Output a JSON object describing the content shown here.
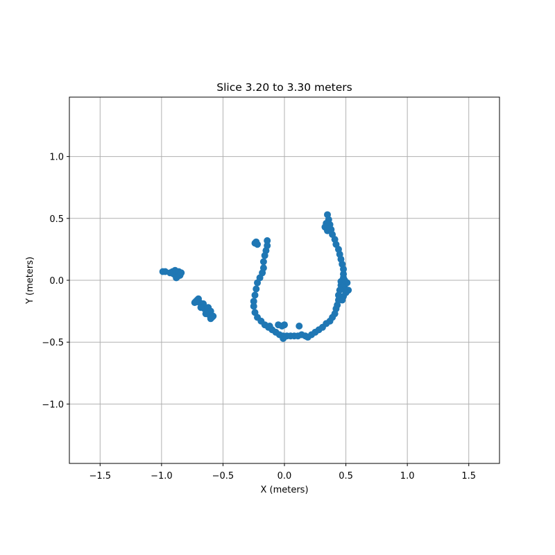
{
  "chart_data": {
    "type": "scatter",
    "title": "Slice 3.20 to 3.30 meters",
    "xlabel": "X (meters)",
    "ylabel": "Y (meters)",
    "xlim": [
      -1.75,
      1.75
    ],
    "ylim": [
      -1.48,
      1.48
    ],
    "xticks": [
      -1.5,
      -1.0,
      -0.5,
      0.0,
      0.5,
      1.0,
      1.5
    ],
    "xtick_labels": [
      "−1.5",
      "−1.0",
      "−0.5",
      "0.0",
      "0.5",
      "1.0",
      "1.5"
    ],
    "yticks": [
      -1.0,
      -0.5,
      0.0,
      0.5,
      1.0
    ],
    "ytick_labels": [
      "−1.0",
      "−0.5",
      "0.0",
      "0.5",
      "1.0"
    ],
    "grid": true,
    "marker_color": "#1f77b4",
    "series": [
      {
        "points": [
          [
            -0.88,
            0.06
          ],
          [
            -0.86,
            0.07
          ],
          [
            -0.9,
            0.05
          ],
          [
            -0.87,
            0.03
          ],
          [
            -0.89,
            0.08
          ],
          [
            -0.85,
            0.04
          ],
          [
            -0.91,
            0.07
          ],
          [
            -0.97,
            0.07
          ],
          [
            -0.99,
            0.07
          ],
          [
            -0.93,
            0.06
          ],
          [
            -0.84,
            0.06
          ],
          [
            -0.88,
            0.02
          ],
          [
            -0.71,
            -0.16
          ],
          [
            -0.69,
            -0.18
          ],
          [
            -0.67,
            -0.2
          ],
          [
            -0.65,
            -0.23
          ],
          [
            -0.63,
            -0.25
          ],
          [
            -0.61,
            -0.28
          ],
          [
            -0.59,
            -0.3
          ],
          [
            -0.7,
            -0.15
          ],
          [
            -0.72,
            -0.17
          ],
          [
            -0.66,
            -0.19
          ],
          [
            -0.62,
            -0.22
          ],
          [
            -0.6,
            -0.25
          ],
          [
            -0.68,
            -0.22
          ],
          [
            -0.64,
            -0.27
          ],
          [
            -0.6,
            -0.31
          ],
          [
            -0.58,
            -0.29
          ],
          [
            -0.73,
            -0.18
          ],
          [
            -0.24,
            0.3
          ],
          [
            -0.22,
            0.29
          ],
          [
            -0.23,
            0.31
          ],
          [
            -0.14,
            0.32
          ],
          [
            -0.14,
            0.28
          ],
          [
            -0.15,
            0.24
          ],
          [
            -0.16,
            0.2
          ],
          [
            -0.17,
            0.15
          ],
          [
            -0.17,
            0.1
          ],
          [
            -0.18,
            0.06
          ],
          [
            -0.2,
            0.02
          ],
          [
            -0.22,
            -0.02
          ],
          [
            -0.23,
            -0.07
          ],
          [
            -0.24,
            -0.12
          ],
          [
            -0.25,
            -0.17
          ],
          [
            -0.25,
            -0.21
          ],
          [
            -0.24,
            -0.26
          ],
          [
            -0.22,
            -0.3
          ],
          [
            -0.19,
            -0.33
          ],
          [
            -0.16,
            -0.36
          ],
          [
            -0.13,
            -0.38
          ],
          [
            -0.1,
            -0.4
          ],
          [
            -0.07,
            -0.42
          ],
          [
            -0.04,
            -0.44
          ],
          [
            -0.01,
            -0.45
          ],
          [
            -0.01,
            -0.47
          ],
          [
            0.02,
            -0.45
          ],
          [
            0.05,
            -0.45
          ],
          [
            0.08,
            -0.45
          ],
          [
            0.11,
            -0.45
          ],
          [
            0.14,
            -0.44
          ],
          [
            0.17,
            -0.45
          ],
          [
            0.19,
            -0.46
          ],
          [
            0.22,
            -0.44
          ],
          [
            0.25,
            -0.42
          ],
          [
            0.28,
            -0.4
          ],
          [
            0.31,
            -0.38
          ],
          [
            0.34,
            -0.35
          ],
          [
            0.37,
            -0.33
          ],
          [
            0.39,
            -0.3
          ],
          [
            0.41,
            -0.27
          ],
          [
            0.42,
            -0.23
          ],
          [
            0.43,
            -0.2
          ],
          [
            0.44,
            -0.16
          ],
          [
            0.44,
            -0.12
          ],
          [
            0.45,
            -0.08
          ],
          [
            0.46,
            -0.04
          ],
          [
            0.46,
            -0.01
          ],
          [
            0.48,
            0.02
          ],
          [
            0.47,
            -0.06
          ],
          [
            0.49,
            -0.04
          ],
          [
            0.51,
            -0.02
          ],
          [
            0.52,
            -0.08
          ],
          [
            0.5,
            -0.1
          ],
          [
            0.48,
            -0.13
          ],
          [
            0.47,
            -0.16
          ],
          [
            0.49,
            0.0
          ],
          [
            0.48,
            0.05
          ],
          [
            0.48,
            0.09
          ],
          [
            0.47,
            0.13
          ],
          [
            0.46,
            0.17
          ],
          [
            0.45,
            0.21
          ],
          [
            0.44,
            0.25
          ],
          [
            0.42,
            0.29
          ],
          [
            0.41,
            0.33
          ],
          [
            0.39,
            0.37
          ],
          [
            0.38,
            0.41
          ],
          [
            0.37,
            0.45
          ],
          [
            0.36,
            0.49
          ],
          [
            0.35,
            0.53
          ],
          [
            0.34,
            0.46
          ],
          [
            0.33,
            0.43
          ],
          [
            0.35,
            0.4
          ],
          [
            0.37,
            0.42
          ],
          [
            -0.05,
            -0.36
          ],
          [
            -0.02,
            -0.37
          ],
          [
            0.0,
            -0.36
          ],
          [
            -0.12,
            -0.37
          ],
          [
            0.12,
            -0.37
          ]
        ]
      }
    ]
  }
}
